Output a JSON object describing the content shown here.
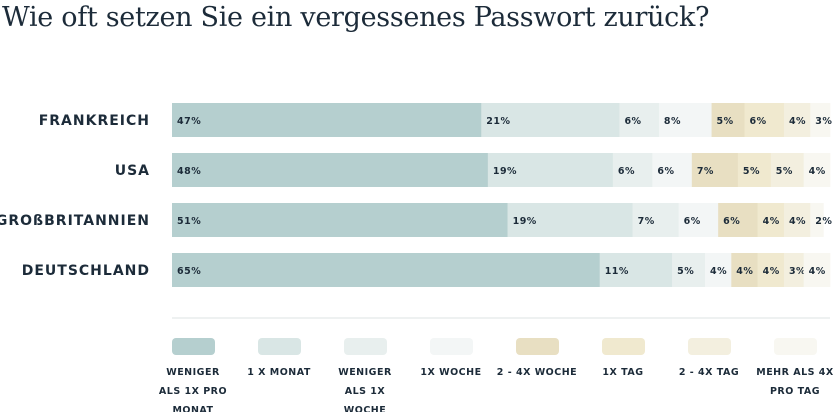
{
  "chart_data": {
    "type": "bar",
    "orientation": "horizontal",
    "stacked": true,
    "title": "Wie oft setzen Sie ein vergessenes Passwort zurück?",
    "categories": [
      "FRANKREICH",
      "USA",
      "GROßBRITANNIEN",
      "DEUTSCHLAND"
    ],
    "series": [
      {
        "name": "WENIGER ALS 1X PRO MONAT",
        "legend_lines": [
          "WENIGER",
          "ALS 1X PRO",
          "MONAT"
        ],
        "color": "#b5cfcf",
        "values": [
          47,
          48,
          51,
          65
        ]
      },
      {
        "name": "1 X MONAT",
        "legend_lines": [
          "1 X MONAT"
        ],
        "color": "#d9e6e5",
        "values": [
          21,
          19,
          19,
          11
        ]
      },
      {
        "name": "WENIGER ALS 1X WOCHE",
        "legend_lines": [
          "WENIGER",
          "ALS 1X",
          "WOCHE"
        ],
        "color": "#e8efee",
        "values": [
          6,
          6,
          7,
          5
        ]
      },
      {
        "name": "1X WOCHE",
        "legend_lines": [
          "1X WOCHE"
        ],
        "color": "#f3f6f6",
        "values": [
          8,
          6,
          6,
          4
        ]
      },
      {
        "name": "2 - 4X WOCHE",
        "legend_lines": [
          "2 - 4X WOCHE"
        ],
        "color": "#e8dfc2",
        "values": [
          5,
          7,
          6,
          4
        ]
      },
      {
        "name": "1X TAG",
        "legend_lines": [
          "1X TAG"
        ],
        "color": "#f0e9cf",
        "values": [
          6,
          5,
          4,
          4
        ]
      },
      {
        "name": "2 - 4X TAG",
        "legend_lines": [
          "2 - 4X TAG"
        ],
        "color": "#f3efdf",
        "values": [
          4,
          5,
          4,
          3
        ]
      },
      {
        "name": "MEHR ALS 4X PRO TAG",
        "legend_lines": [
          "MEHR ALS 4X",
          "PRO TAG"
        ],
        "color": "#f8f7f1",
        "values": [
          3,
          4,
          2,
          4
        ]
      }
    ],
    "value_suffix": "%",
    "legend_position": "bottom",
    "grid": false
  }
}
